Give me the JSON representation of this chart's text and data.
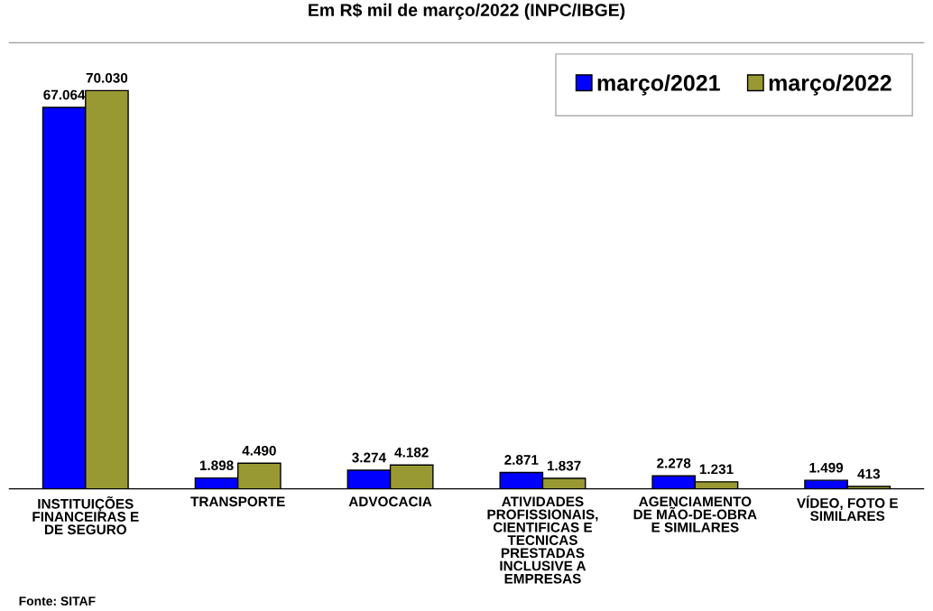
{
  "chart_data": {
    "type": "bar",
    "title": "Em R$ mil de março/2022 (INPC/IBGE)",
    "categories": [
      "INSTITUIÇÕES\nFINANCEIRAS E\nDE SEGURO",
      "TRANSPORTE",
      "ADVOCACIA",
      "ATIVIDADES\nPROFISSIONAIS,\nCIENTIFICAS E\nTECNICAS\nPRESTADAS\nINCLUSIVE A\nEMPRESAS",
      "AGENCIAMENTO\nDE MÃO-DE-OBRA\nE SIMILARES",
      "VÍDEO, FOTO E\nSIMILARES"
    ],
    "series": [
      {
        "name": "março/2021",
        "color": "#0000ff",
        "values": [
          67064,
          1898,
          3274,
          2871,
          2278,
          1499
        ],
        "value_labels": [
          "67.064",
          "1.898",
          "3.274",
          "2.871",
          "2.278",
          "1.499"
        ]
      },
      {
        "name": "março/2022",
        "color": "#999933",
        "values": [
          70030,
          4490,
          4182,
          1837,
          1231,
          413
        ],
        "value_labels": [
          "70.030",
          "4.490",
          "4.182",
          "1.837",
          "1.231",
          "413"
        ]
      }
    ],
    "legend": "top right",
    "grid": false,
    "tick_labels": "x",
    "annotations": [
      "Fonte: SITAF"
    ]
  }
}
